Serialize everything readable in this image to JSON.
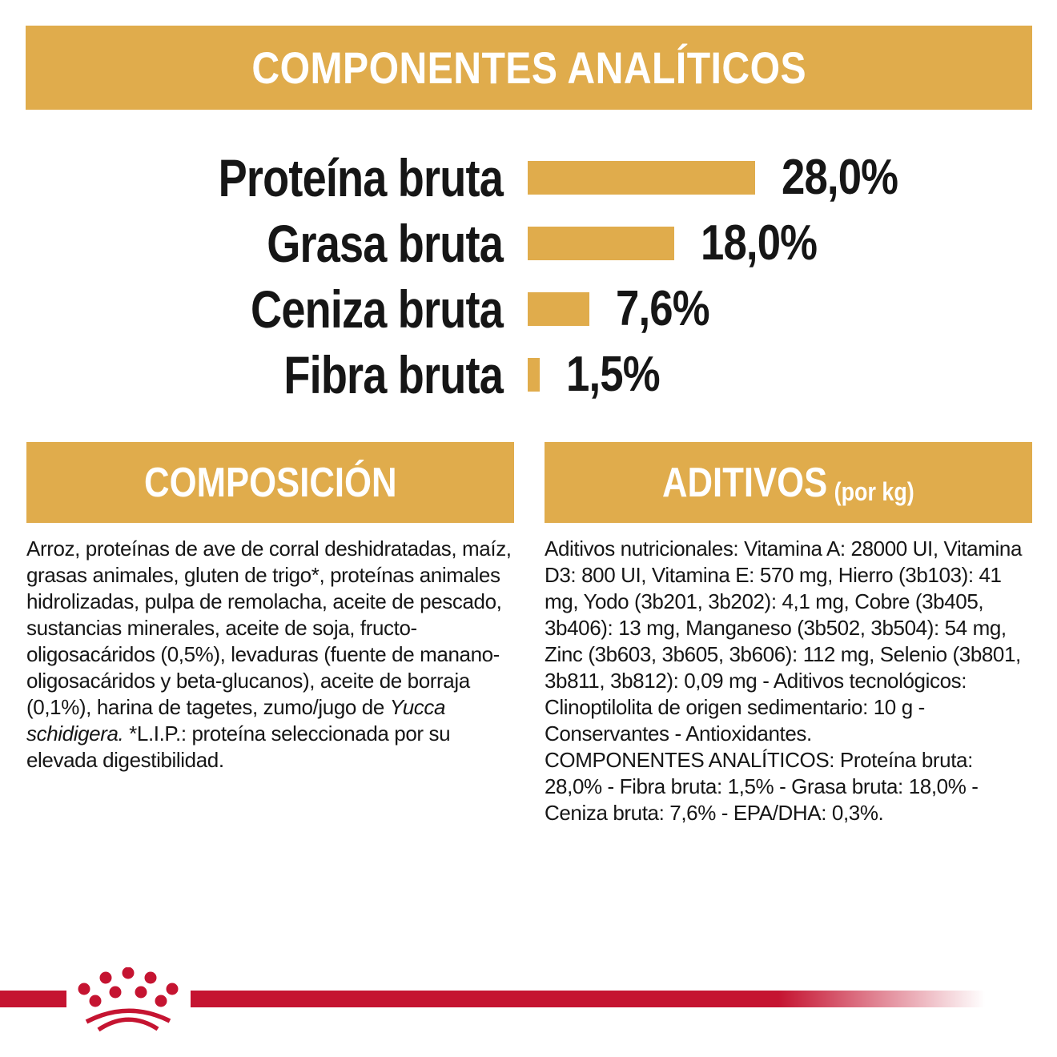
{
  "colors": {
    "gold": "#E0AC4C",
    "red": "#C51431",
    "text": "#161616",
    "banner_text": "#FFFFFF"
  },
  "header": {
    "title": "COMPONENTES ANALÍTICOS"
  },
  "chart_data": {
    "type": "bar",
    "orientation": "horizontal",
    "title": "COMPONENTES ANALÍTICOS",
    "categories": [
      "Proteína bruta",
      "Grasa bruta",
      "Ceniza bruta",
      "Fibra bruta"
    ],
    "values": [
      28.0,
      18.0,
      7.6,
      1.5
    ],
    "value_labels": [
      "28,0%",
      "18,0%",
      "7,6%",
      "1,5%"
    ],
    "unit": "%",
    "xlim": [
      0,
      30
    ],
    "bar_color": "#E0AC4C",
    "legend": "none",
    "grid": false
  },
  "composition": {
    "header": "COMPOSICIÓN",
    "text_before_italic": "Arroz, proteínas de ave de corral deshidratadas, maíz, grasas animales, gluten de trigo*, proteínas animales hidrolizadas, pulpa de remolacha, aceite de pescado, sustancias minerales, aceite de soja, fructo-oligosacáridos (0,5%), levaduras (fuente de manano-oligosacáridos y beta-glucanos), aceite de borraja (0,1%), harina de tagetes, zumo/jugo de ",
    "italic": "Yucca schidigera.",
    "text_after_italic": " *L.I.P.: proteína seleccionada por su elevada digestibilidad."
  },
  "additives": {
    "header": "ADITIVOS",
    "header_unit": "(por kg)",
    "paragraph1": "Aditivos nutricionales: Vitamina A: 28000 UI, Vitamina D3: 800 UI, Vitamina E: 570 mg, Hierro (3b103): 41 mg, Yodo (3b201, 3b202): 4,1 mg, Cobre (3b405, 3b406): 13 mg, Manganeso (3b502, 3b504): 54 mg, Zinc (3b603, 3b605, 3b606): 112 mg, Selenio (3b801, 3b811, 3b812): 0,09 mg - Aditivos tecnológicos: Clinoptilolita de origen sedimentario: 10 g - Conservantes - Antioxidantes.",
    "paragraph2": "COMPONENTES ANALÍTICOS: Proteína bruta: 28,0% - Fibra bruta: 1,5% - Grasa bruta: 18,0% - Ceniza bruta: 7,6% - EPA/DHA: 0,3%."
  },
  "footer": {
    "logo_icon": "royal-canin-crown"
  }
}
